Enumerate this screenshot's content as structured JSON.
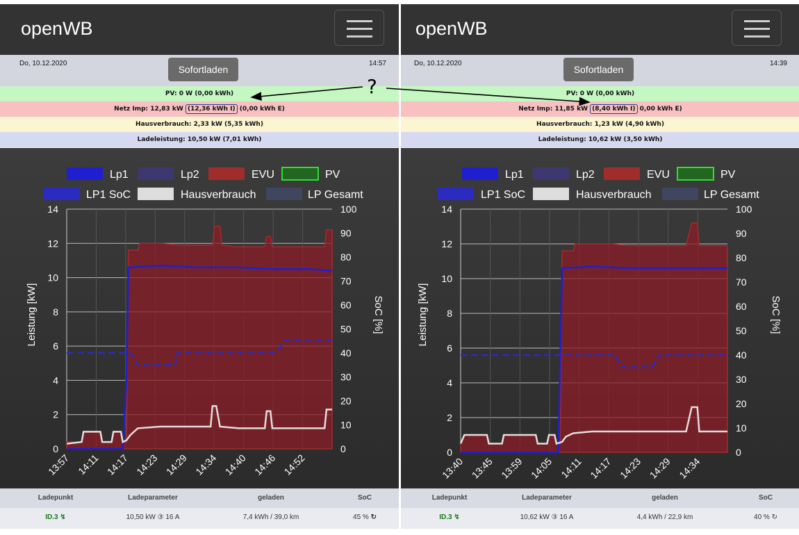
{
  "app_title": "openWB",
  "question_mark": "?",
  "colors": {
    "pv": "#c4f7c1",
    "netz": "#f8c0c0",
    "haus": "#fbf5d2",
    "lade": "#d6daf0",
    "lp1": "#1f1fd0",
    "evu": "#a02c2c"
  },
  "legend": {
    "lp1": "Lp1",
    "lp2": "Lp2",
    "evu": "EVU",
    "pv": "PV",
    "lp1soc": "LP1 SoC",
    "haus": "Hausverbrauch",
    "lpges": "LP Gesamt"
  },
  "axes": {
    "y_left_label": "Leistung [kW]",
    "y_right_label": "SoC [%]",
    "y_left_ticks": [
      "0",
      "2",
      "4",
      "6",
      "8",
      "10",
      "12",
      "14"
    ],
    "y_right_ticks": [
      "0",
      "10",
      "20",
      "30",
      "40",
      "50",
      "60",
      "70",
      "80",
      "90",
      "100"
    ]
  },
  "table_headers": {
    "ladepunkt": "Ladepunkt",
    "ladeparameter": "Ladeparameter",
    "geladen": "geladen",
    "soc": "SoC"
  },
  "panels": [
    {
      "date": "Do, 10.12.2020",
      "time": "14:57",
      "sofort_button": "Sofortladen",
      "pv_line": "PV: 0 W (0,00 kWh)",
      "netz_prefix": "Netz Imp: 12,83 kW",
      "netz_highlight": "(12,36 kWh I)",
      "netz_suffix": "(0,00 kWh E)",
      "haus_line": "Hausverbrauch: 2,33 kW (5,35 kWh)",
      "lade_line": "Ladeleistung: 10,50 kW (7,01 kWh)",
      "row": {
        "ladepunkt": "ID.3",
        "ladeparameter": "10,50 kW ③ 16 A",
        "geladen": "7,4 kWh / 39,0 km",
        "soc": "45 %"
      },
      "chart_data": {
        "type": "area",
        "title": "",
        "xlabel": "",
        "ylabel": "Leistung [kW]",
        "y2label": "SoC [%]",
        "ylim": [
          0,
          14
        ],
        "y2lim": [
          0,
          100
        ],
        "x_tick_labels": [
          "13:57",
          "14:11",
          "14:17",
          "14:23",
          "14:29",
          "14:34",
          "14:40",
          "14:46",
          "14:52"
        ],
        "series": [
          {
            "name": "EVU",
            "axis": "left",
            "values": [
              [
                0,
                0.4
              ],
              [
                0.4,
                0.4
              ],
              [
                0.45,
                1.0
              ],
              [
                0.9,
                1.0
              ],
              [
                0.95,
                0.4
              ],
              [
                1.2,
                0.4
              ],
              [
                1.25,
                1.0
              ],
              [
                1.45,
                1.0
              ],
              [
                1.5,
                0.4
              ],
              [
                1.6,
                0.4
              ],
              [
                1.65,
                11.6
              ],
              [
                1.9,
                11.6
              ],
              [
                1.95,
                12.0
              ],
              [
                2.5,
                12.0
              ],
              [
                3.0,
                11.9
              ],
              [
                3.5,
                11.9
              ],
              [
                3.9,
                11.9
              ],
              [
                3.95,
                13.0
              ],
              [
                4.1,
                13.0
              ],
              [
                4.15,
                11.9
              ],
              [
                4.5,
                11.8
              ],
              [
                5.0,
                11.8
              ],
              [
                5.3,
                11.8
              ],
              [
                5.35,
                12.4
              ],
              [
                5.45,
                12.4
              ],
              [
                5.5,
                11.8
              ],
              [
                6.0,
                11.8
              ],
              [
                6.5,
                11.8
              ],
              [
                6.9,
                11.8
              ],
              [
                6.95,
                12.8
              ],
              [
                7.1,
                12.8
              ]
            ]
          },
          {
            "name": "Lp1",
            "axis": "left",
            "values": [
              [
                0,
                0
              ],
              [
                1.5,
                0
              ],
              [
                1.6,
                4
              ],
              [
                1.65,
                10.6
              ],
              [
                2.5,
                10.7
              ],
              [
                3.5,
                10.6
              ],
              [
                4.5,
                10.6
              ],
              [
                5.5,
                10.5
              ],
              [
                6.5,
                10.5
              ],
              [
                7.1,
                10.4
              ]
            ]
          },
          {
            "name": "Hausverbrauch",
            "axis": "left",
            "values": [
              [
                0,
                0.3
              ],
              [
                0.4,
                0.4
              ],
              [
                0.45,
                1.0
              ],
              [
                0.9,
                1.0
              ],
              [
                0.95,
                0.4
              ],
              [
                1.2,
                0.4
              ],
              [
                1.25,
                1.0
              ],
              [
                1.45,
                1.0
              ],
              [
                1.5,
                0.4
              ],
              [
                1.6,
                0.5
              ],
              [
                1.7,
                0.8
              ],
              [
                1.9,
                1.2
              ],
              [
                2.5,
                1.3
              ],
              [
                3.5,
                1.3
              ],
              [
                3.85,
                1.3
              ],
              [
                3.9,
                2.5
              ],
              [
                4.0,
                2.5
              ],
              [
                4.1,
                1.3
              ],
              [
                4.6,
                1.2
              ],
              [
                5.3,
                1.2
              ],
              [
                5.35,
                2.2
              ],
              [
                5.45,
                2.2
              ],
              [
                5.5,
                1.2
              ],
              [
                6.5,
                1.2
              ],
              [
                6.9,
                1.2
              ],
              [
                6.95,
                2.3
              ],
              [
                7.1,
                2.3
              ]
            ]
          },
          {
            "name": "LP1 SoC",
            "axis": "right",
            "values": [
              [
                0,
                40
              ],
              [
                1.7,
                40
              ],
              [
                1.8,
                38
              ],
              [
                1.9,
                35
              ],
              [
                2.9,
                35
              ],
              [
                2.95,
                40
              ],
              [
                5.5,
                40
              ],
              [
                5.7,
                42
              ],
              [
                5.8,
                45
              ],
              [
                7.1,
                45
              ]
            ]
          }
        ]
      }
    },
    {
      "date": "Do, 10.12.2020",
      "time": "14:39",
      "sofort_button": "Sofortladen",
      "pv_line": "PV: 0 W (0,00 kWh)",
      "netz_prefix": "Netz Imp: 11,85 kW",
      "netz_highlight": "(8,40 kWh I)",
      "netz_suffix": "0,00 kWh E)",
      "haus_line": "Hausverbrauch: 1,23 kW (4,90 kWh)",
      "lade_line": "Ladeleistung: 10,62 kW (3,50 kWh)",
      "row": {
        "ladepunkt": "ID.3",
        "ladeparameter": "10,62 kW ③ 16 A",
        "geladen": "4,4 kWh / 22,9 km",
        "soc": "40 %"
      },
      "chart_data": {
        "type": "area",
        "title": "",
        "xlabel": "",
        "ylabel": "Leistung [kW]",
        "y2label": "SoC [%]",
        "ylim": [
          0,
          14
        ],
        "y2lim": [
          0,
          100
        ],
        "x_tick_labels": [
          "13:40",
          "13:45",
          "13:59",
          "14:05",
          "14:11",
          "14:17",
          "14:23",
          "14:29",
          "14:34"
        ],
        "series": [
          {
            "name": "EVU",
            "axis": "left",
            "values": [
              [
                0,
                0.5
              ],
              [
                0.1,
                1.0
              ],
              [
                0.7,
                1.0
              ],
              [
                0.75,
                0.5
              ],
              [
                1.1,
                0.5
              ],
              [
                1.15,
                1.0
              ],
              [
                2.0,
                1.0
              ],
              [
                2.05,
                0.5
              ],
              [
                2.3,
                0.5
              ],
              [
                2.35,
                1.0
              ],
              [
                2.5,
                1.0
              ],
              [
                2.55,
                0.5
              ],
              [
                2.65,
                0.5
              ],
              [
                2.7,
                11.6
              ],
              [
                3.0,
                11.6
              ],
              [
                3.05,
                12.0
              ],
              [
                4.0,
                12.0
              ],
              [
                4.5,
                11.9
              ],
              [
                5.0,
                11.9
              ],
              [
                5.5,
                11.9
              ],
              [
                6.0,
                11.9
              ],
              [
                6.15,
                13.2
              ],
              [
                6.3,
                13.2
              ],
              [
                6.35,
                11.9
              ],
              [
                6.5,
                11.9
              ],
              [
                7.1,
                11.9
              ]
            ]
          },
          {
            "name": "Lp1",
            "axis": "left",
            "values": [
              [
                0,
                0
              ],
              [
                2.6,
                0
              ],
              [
                2.7,
                10.6
              ],
              [
                3.5,
                10.7
              ],
              [
                4.5,
                10.6
              ],
              [
                5.5,
                10.6
              ],
              [
                6.5,
                10.6
              ],
              [
                7.1,
                10.6
              ]
            ]
          },
          {
            "name": "Hausverbrauch",
            "axis": "left",
            "values": [
              [
                0,
                0.5
              ],
              [
                0.1,
                1.0
              ],
              [
                0.7,
                1.0
              ],
              [
                0.75,
                0.5
              ],
              [
                1.1,
                0.5
              ],
              [
                1.15,
                1.0
              ],
              [
                2.0,
                1.0
              ],
              [
                2.05,
                0.5
              ],
              [
                2.3,
                0.5
              ],
              [
                2.35,
                1.0
              ],
              [
                2.5,
                1.0
              ],
              [
                2.55,
                0.5
              ],
              [
                2.7,
                0.6
              ],
              [
                2.8,
                0.9
              ],
              [
                3.0,
                1.1
              ],
              [
                3.5,
                1.2
              ],
              [
                4.5,
                1.2
              ],
              [
                5.5,
                1.2
              ],
              [
                6.0,
                1.2
              ],
              [
                6.15,
                2.6
              ],
              [
                6.3,
                2.6
              ],
              [
                6.35,
                1.2
              ],
              [
                7.1,
                1.2
              ]
            ]
          },
          {
            "name": "LP1 SoC",
            "axis": "right",
            "values": [
              [
                0,
                40
              ],
              [
                4.1,
                40
              ],
              [
                4.2,
                38
              ],
              [
                4.3,
                35
              ],
              [
                5.1,
                35
              ],
              [
                5.2,
                38
              ],
              [
                5.3,
                40
              ],
              [
                7.1,
                40
              ]
            ]
          }
        ]
      }
    }
  ]
}
